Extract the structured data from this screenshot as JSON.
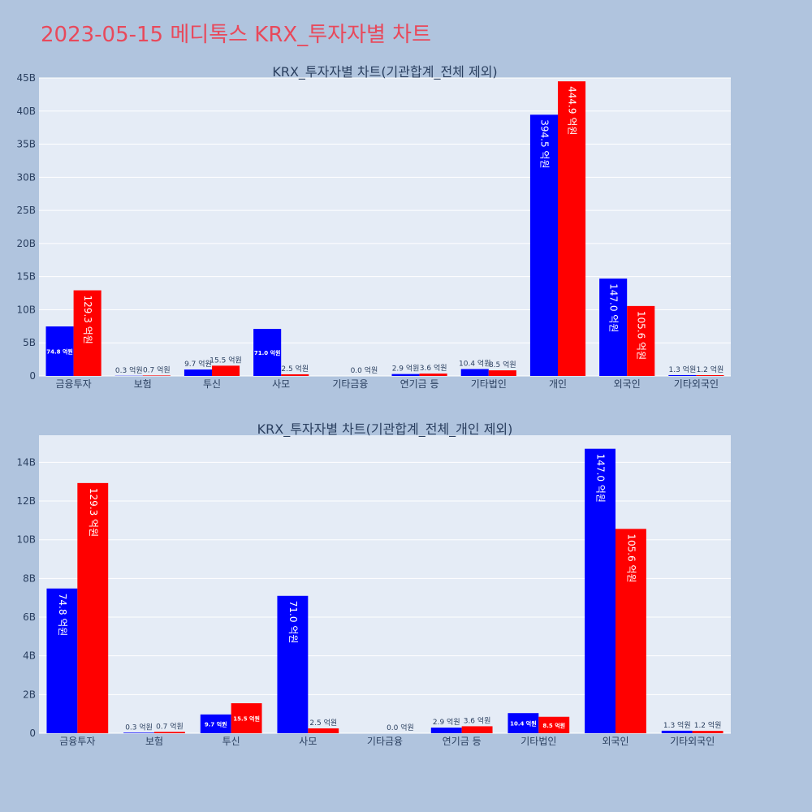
{
  "page_title": "2023-05-15 메디톡스 KRX_투자자별 차트",
  "colors": {
    "series_0": "#0000ff",
    "series_1": "#ff0000",
    "title": "#e8495b"
  },
  "chart_data": [
    {
      "type": "bar",
      "title": "KRX_투자자별 차트(기관합계_전체 제외)",
      "categories": [
        "금융투자",
        "보험",
        "투신",
        "사모",
        "기타금융",
        "연기금 등",
        "기타법인",
        "개인",
        "외국인",
        "기타외국인"
      ],
      "series": [
        {
          "values": [
            7.48,
            0.03,
            0.97,
            7.1,
            0.0,
            0.29,
            1.04,
            39.45,
            14.7,
            0.13
          ],
          "labels": [
            "74.8 억원",
            "0.3 억원",
            "9.7 억원",
            "71.0 억원",
            "",
            "2.9 억원",
            "10.4 억원",
            "394.5 억원",
            "147.0 억원",
            "1.3 억원"
          ]
        },
        {
          "values": [
            12.93,
            0.07,
            1.55,
            0.25,
            0.0,
            0.36,
            0.85,
            44.49,
            10.56,
            0.12
          ],
          "labels": [
            "129.3 억원",
            "0.7 억원",
            "15.5 억원",
            "2.5 억원",
            "0.0 억원",
            "3.6 억원",
            "8.5 억원",
            "444.9 억원",
            "105.6 억원",
            "1.2 억원"
          ]
        }
      ],
      "yticks": [
        "0",
        "5B",
        "10B",
        "15B",
        "20B",
        "25B",
        "30B",
        "35B",
        "40B",
        "45B"
      ],
      "ylim": [
        0,
        45
      ],
      "unit": "B"
    },
    {
      "type": "bar",
      "title": "KRX_투자자별 차트(기관합계_전체_개인 제외)",
      "categories": [
        "금융투자",
        "보험",
        "투신",
        "사모",
        "기타금융",
        "연기금 등",
        "기타법인",
        "외국인",
        "기타외국인"
      ],
      "series": [
        {
          "values": [
            7.48,
            0.03,
            0.97,
            7.1,
            0.0,
            0.29,
            1.04,
            14.7,
            0.13
          ],
          "labels": [
            "74.8 억원",
            "0.3 억원",
            "9.7 억원",
            "71.0 억원",
            "",
            "2.9 억원",
            "10.4 억원",
            "147.0 억원",
            "1.3 억원"
          ]
        },
        {
          "values": [
            12.93,
            0.07,
            1.55,
            0.25,
            0.0,
            0.36,
            0.85,
            10.56,
            0.12
          ],
          "labels": [
            "129.3 억원",
            "0.7 억원",
            "15.5 억원",
            "2.5 억원",
            "0.0 억원",
            "3.6 억원",
            "8.5 억원",
            "105.6 억원",
            "1.2 억원"
          ]
        }
      ],
      "yticks": [
        "0",
        "2B",
        "4B",
        "6B",
        "8B",
        "10B",
        "12B",
        "14B"
      ],
      "ylim": [
        0,
        15.4
      ],
      "unit": "B"
    }
  ]
}
